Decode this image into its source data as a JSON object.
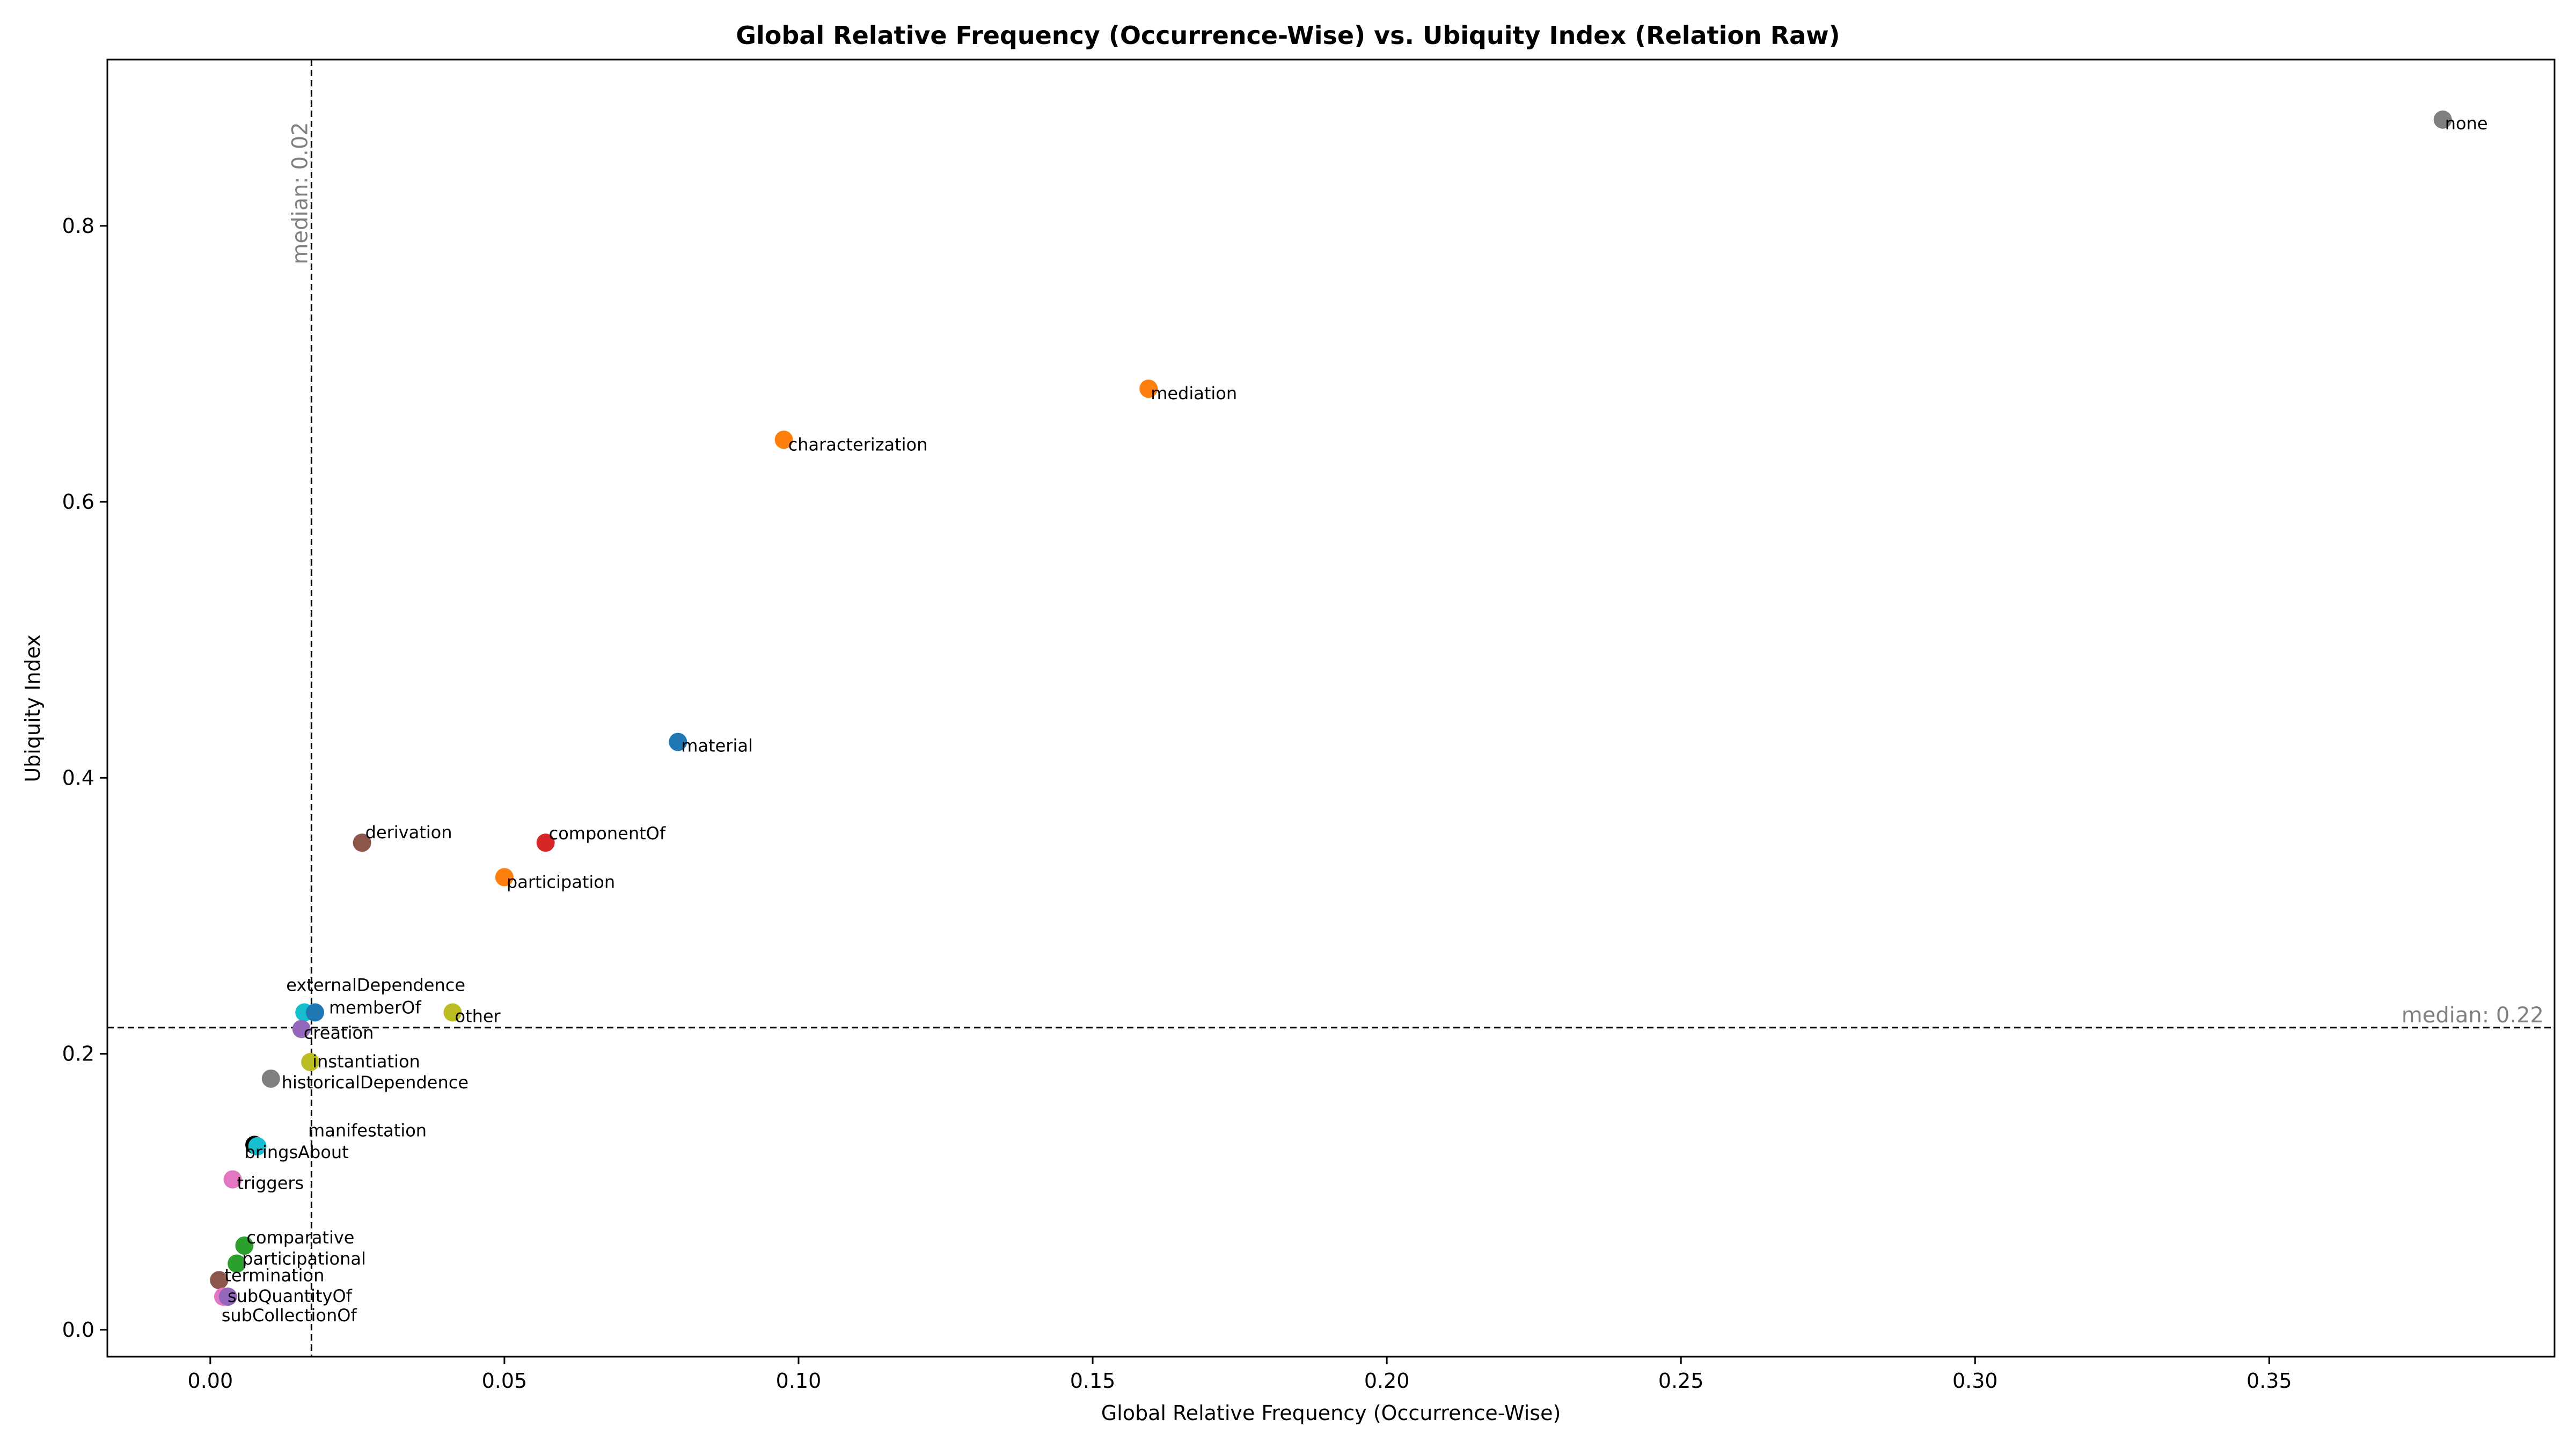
{
  "chart_data": {
    "type": "scatter",
    "title": "Global Relative Frequency (Occurrence-Wise) vs. Ubiquity Index (Relation Raw)",
    "xlabel": "Global Relative Frequency (Occurrence-Wise)",
    "ylabel": "Ubiquity Index",
    "xlim": [
      -0.0175,
      0.3985
    ],
    "ylim": [
      -0.0195,
      0.9205
    ],
    "xticks": [
      0.0,
      0.05,
      0.1,
      0.15,
      0.2,
      0.25,
      0.3,
      0.35
    ],
    "xtick_labels": [
      "0.00",
      "0.05",
      "0.10",
      "0.15",
      "0.20",
      "0.25",
      "0.30",
      "0.35"
    ],
    "yticks": [
      0.0,
      0.2,
      0.4,
      0.6,
      0.8
    ],
    "ytick_labels": [
      "0.0",
      "0.2",
      "0.4",
      "0.6",
      "0.8"
    ],
    "grid": false,
    "median_x": {
      "value": 0.0172,
      "label": "median: 0.02"
    },
    "median_y": {
      "value": 0.219,
      "label": "median: 0.22"
    },
    "points": [
      {
        "name": "none",
        "x": 0.3795,
        "y": 0.877,
        "color": "#7f7f7f"
      },
      {
        "name": "mediation",
        "x": 0.1595,
        "y": 0.682,
        "color": "#ff7f0e"
      },
      {
        "name": "characterization",
        "x": 0.0975,
        "y": 0.645,
        "color": "#ff7f0e"
      },
      {
        "name": "material",
        "x": 0.0795,
        "y": 0.426,
        "color": "#1f77b4"
      },
      {
        "name": "componentOf",
        "x": 0.057,
        "y": 0.353,
        "color": "#d62728"
      },
      {
        "name": "derivation",
        "x": 0.0258,
        "y": 0.353,
        "color": "#8c564b"
      },
      {
        "name": "participation",
        "x": 0.05,
        "y": 0.328,
        "color": "#ff7f0e"
      },
      {
        "name": "other",
        "x": 0.0412,
        "y": 0.23,
        "color": "#bcbd22"
      },
      {
        "name": "externalDependence",
        "x": 0.016,
        "y": 0.23,
        "color": "#17becf"
      },
      {
        "name": "memberOf",
        "x": 0.0178,
        "y": 0.23,
        "color": "#1f77b4"
      },
      {
        "name": "creation",
        "x": 0.0155,
        "y": 0.218,
        "color": "#9467bd"
      },
      {
        "name": "instantiation",
        "x": 0.017,
        "y": 0.194,
        "color": "#bcbd22"
      },
      {
        "name": "historicalDependence",
        "x": 0.0103,
        "y": 0.182,
        "color": "#7f7f7f"
      },
      {
        "name": "manifestation",
        "x": 0.0075,
        "y": 0.134,
        "color": "#000000"
      },
      {
        "name": "bringsAbout",
        "x": 0.008,
        "y": 0.133,
        "color": "#17becf"
      },
      {
        "name": "triggers",
        "x": 0.0038,
        "y": 0.109,
        "color": "#e377c2"
      },
      {
        "name": "comparative",
        "x": 0.0058,
        "y": 0.061,
        "color": "#2ca02c"
      },
      {
        "name": "participational",
        "x": 0.0045,
        "y": 0.048,
        "color": "#2ca02c"
      },
      {
        "name": "termination",
        "x": 0.0015,
        "y": 0.036,
        "color": "#8c564b"
      },
      {
        "name": "subQuantityOf",
        "x": 0.0022,
        "y": 0.024,
        "color": "#e377c2"
      },
      {
        "name": "subCollectionOf",
        "x": 0.003,
        "y": 0.024,
        "color": "#9467bd"
      }
    ]
  }
}
